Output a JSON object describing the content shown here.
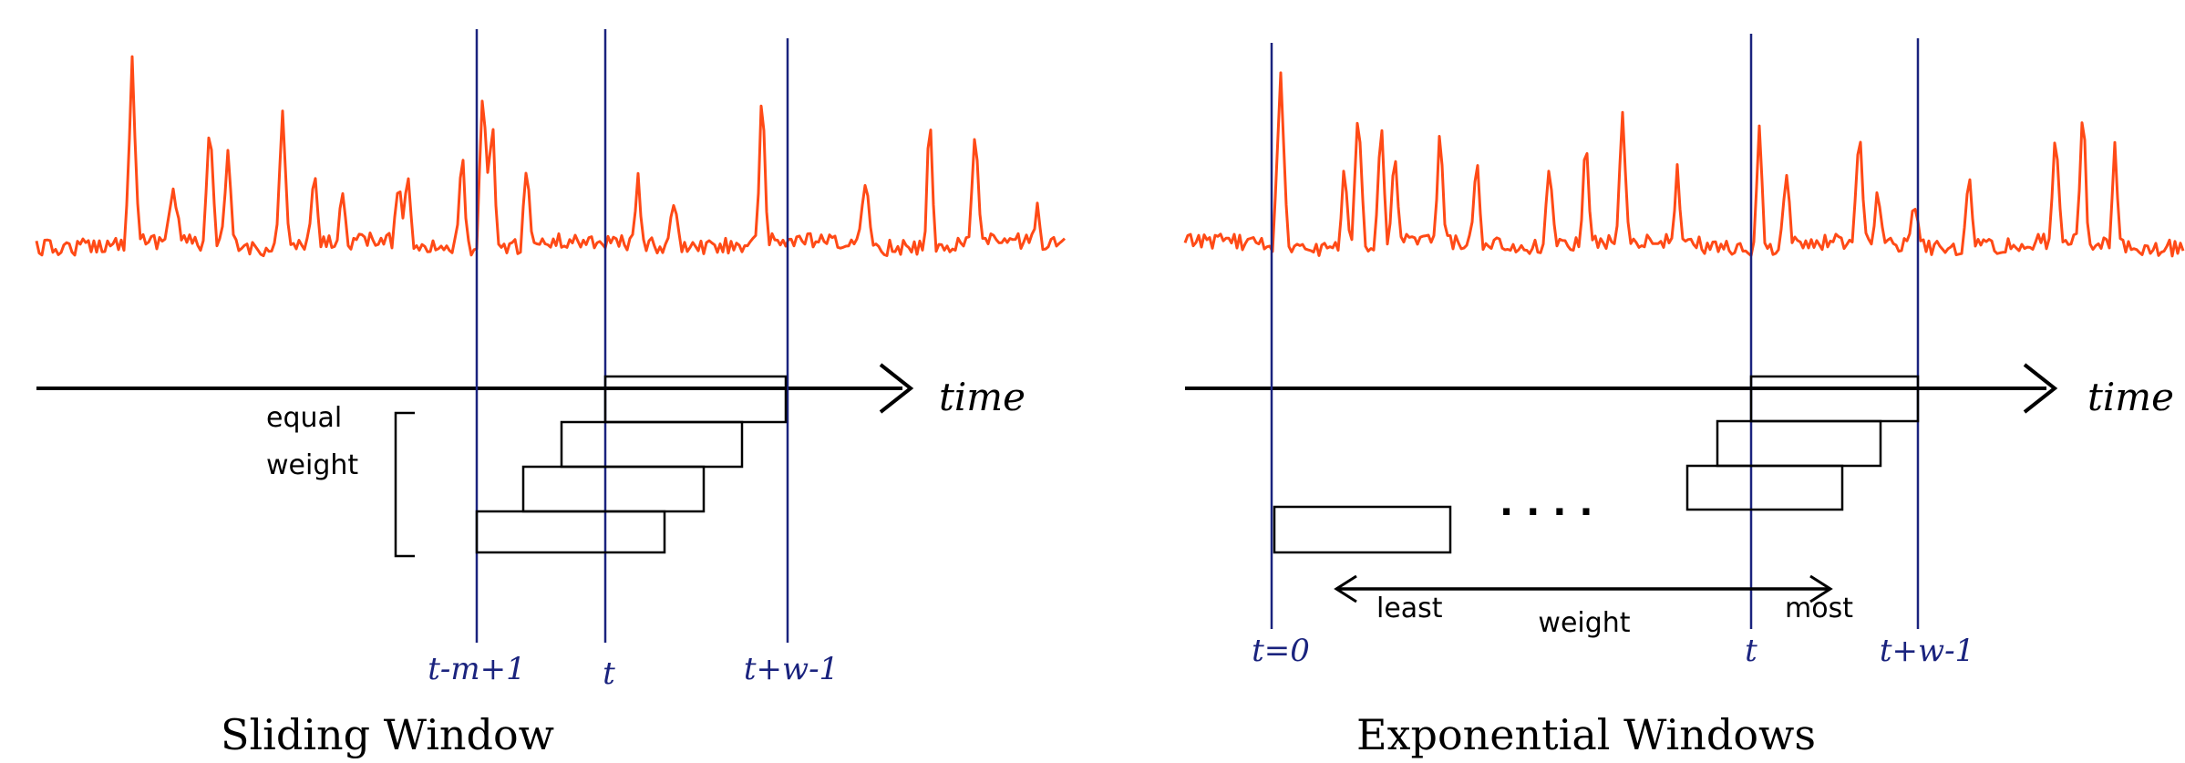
{
  "colors": {
    "signal": "#ff4a16",
    "marker": "#1a237e",
    "axis": "#000000",
    "box": "#000000",
    "label": "#000000",
    "marker_label": "#1a237e"
  },
  "left_panel": {
    "title": "Sliding Window",
    "axis_label": "time",
    "bracket_label_line1": "equal",
    "bracket_label_line2": "weight",
    "markers": [
      "t-m+1",
      "t",
      "t+w-1"
    ]
  },
  "right_panel": {
    "title": "Exponential Windows",
    "axis_label": "time",
    "ellipsis": ". . . .",
    "arrow_label_left": "least",
    "arrow_label_center": "weight",
    "arrow_label_right": "most",
    "markers": [
      "t=0",
      "t",
      "t+w-1"
    ]
  }
}
